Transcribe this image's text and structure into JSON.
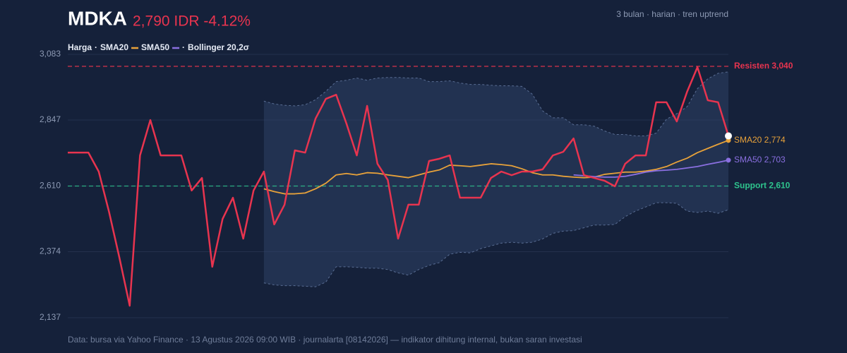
{
  "chart_data": {
    "type": "line",
    "title": "MDKA",
    "price_label": "2,790 IDR -4.12%",
    "subtitle": "3 bulan · harian · tren uptrend",
    "footer": "Data: bursa via Yahoo Finance · 13 Agustus 2026 09:00 WIB · journalarta [08142026] — indikator dihitung internal, bukan saran investasi",
    "ylim": [
      2137,
      3083
    ],
    "yticks": [
      {
        "value": 2137,
        "label": "2,137"
      },
      {
        "value": 2374,
        "label": "2,374"
      },
      {
        "value": 2610,
        "label": "2,610"
      },
      {
        "value": 2847,
        "label": "2,847"
      },
      {
        "value": 3083,
        "label": "3,083"
      }
    ],
    "grid": true,
    "levels": [
      {
        "value": 3040,
        "label": "Resisten 3,040",
        "color": "#e8344f"
      },
      {
        "value": 2610,
        "label": "Support 2,610",
        "color": "#2ec48d"
      }
    ],
    "band": {
      "name": "Bollinger 20,2σ",
      "color": "#5a6e94",
      "upper": [
        null,
        null,
        null,
        null,
        null,
        null,
        null,
        null,
        null,
        null,
        null,
        null,
        null,
        null,
        null,
        null,
        null,
        null,
        null,
        2915,
        2905,
        2900,
        2898,
        2902,
        2920,
        2950,
        2985,
        2990,
        2998,
        2990,
        2998,
        3000,
        3000,
        2998,
        2998,
        2985,
        2985,
        2988,
        2980,
        2975,
        2975,
        2972,
        2970,
        2970,
        2968,
        2940,
        2880,
        2855,
        2855,
        2830,
        2830,
        2825,
        2808,
        2795,
        2795,
        2790,
        2790,
        2800,
        2850,
        2870,
        2895,
        2960,
        2995,
        3015,
        3020
      ],
      "lower": [
        null,
        null,
        null,
        null,
        null,
        null,
        null,
        null,
        null,
        null,
        null,
        null,
        null,
        null,
        null,
        null,
        null,
        null,
        null,
        2262,
        2255,
        2252,
        2252,
        2250,
        2248,
        2265,
        2320,
        2320,
        2318,
        2315,
        2315,
        2310,
        2298,
        2290,
        2310,
        2325,
        2335,
        2365,
        2372,
        2370,
        2385,
        2395,
        2405,
        2408,
        2405,
        2408,
        2420,
        2440,
        2448,
        2450,
        2460,
        2470,
        2470,
        2472,
        2500,
        2520,
        2535,
        2550,
        2550,
        2548,
        2520,
        2515,
        2520,
        2512,
        2525
      ]
    },
    "series": [
      {
        "name": "Harga",
        "color": "#e8344f",
        "values": [
          2730,
          2730,
          2730,
          2662,
          2517,
          2353,
          2180,
          2720,
          2847,
          2720,
          2720,
          2720,
          2594,
          2639,
          2320,
          2492,
          2568,
          2421,
          2594,
          2662,
          2472,
          2543,
          2738,
          2730,
          2852,
          2923,
          2938,
          2834,
          2720,
          2898,
          2690,
          2632,
          2421,
          2543,
          2543,
          2700,
          2708,
          2720,
          2568,
          2568,
          2568,
          2639,
          2662,
          2649,
          2662,
          2662,
          2670,
          2720,
          2733,
          2781,
          2649,
          2639,
          2629,
          2609,
          2690,
          2720,
          2720,
          2911,
          2911,
          2842,
          2949,
          3037,
          2918,
          2911,
          2790
        ]
      },
      {
        "name": "SMA20",
        "color": "#e8a23a",
        "end_label": "SMA20 2,774",
        "values": [
          null,
          null,
          null,
          null,
          null,
          null,
          null,
          null,
          null,
          null,
          null,
          null,
          null,
          null,
          null,
          null,
          null,
          null,
          null,
          2600,
          2590,
          2582,
          2582,
          2585,
          2600,
          2620,
          2650,
          2655,
          2650,
          2658,
          2656,
          2650,
          2645,
          2640,
          2650,
          2660,
          2668,
          2685,
          2683,
          2680,
          2685,
          2690,
          2687,
          2683,
          2672,
          2658,
          2650,
          2650,
          2645,
          2642,
          2640,
          2642,
          2652,
          2656,
          2660,
          2660,
          2664,
          2670,
          2680,
          2696,
          2710,
          2730,
          2745,
          2760,
          2774
        ]
      },
      {
        "name": "SMA50",
        "color": "#8a6fe0",
        "end_label": "SMA50 2,703",
        "values": [
          null,
          null,
          null,
          null,
          null,
          null,
          null,
          null,
          null,
          null,
          null,
          null,
          null,
          null,
          null,
          null,
          null,
          null,
          null,
          null,
          null,
          null,
          null,
          null,
          null,
          null,
          null,
          null,
          null,
          null,
          null,
          null,
          null,
          null,
          null,
          null,
          null,
          null,
          null,
          null,
          null,
          null,
          null,
          null,
          null,
          null,
          null,
          null,
          null,
          2650,
          2647,
          2644,
          2642,
          2642,
          2645,
          2652,
          2660,
          2665,
          2667,
          2670,
          2675,
          2680,
          2688,
          2695,
          2703
        ]
      }
    ]
  }
}
